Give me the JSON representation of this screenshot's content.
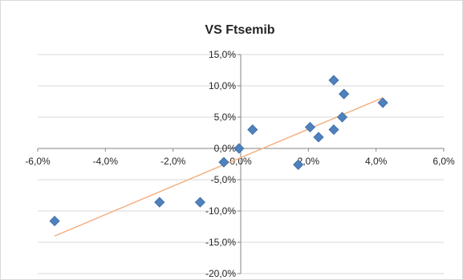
{
  "chart_data": {
    "type": "scatter",
    "title": "VS Ftsemib",
    "xlabel": "",
    "ylabel": "",
    "xlim": [
      -6,
      6
    ],
    "ylim": [
      -20,
      15
    ],
    "x_ticks": [
      -6,
      -4,
      -2,
      0,
      2,
      4,
      6
    ],
    "y_ticks": [
      -20,
      -15,
      -10,
      -5,
      0,
      5,
      10,
      15
    ],
    "x_tick_labels": [
      "-6,0%",
      "-4,0%",
      "-2,0%",
      "0,0%",
      "2,0%",
      "4,0%",
      "6,0%"
    ],
    "y_tick_labels": [
      "-20,0%",
      "-15,0%",
      "-10,0%",
      "-5,0%",
      "0,0%",
      "5,0%",
      "10,0%",
      "15,0%"
    ],
    "grid": true,
    "legend": "none",
    "points": [
      {
        "x": -5.5,
        "y": -11.6
      },
      {
        "x": -2.4,
        "y": -8.6
      },
      {
        "x": -1.2,
        "y": -8.6
      },
      {
        "x": -0.5,
        "y": -2.2
      },
      {
        "x": -0.05,
        "y": 0.0
      },
      {
        "x": 0.35,
        "y": 3.0
      },
      {
        "x": 1.7,
        "y": -2.6
      },
      {
        "x": 2.05,
        "y": 3.4
      },
      {
        "x": 2.3,
        "y": 1.8
      },
      {
        "x": 2.75,
        "y": 3.0
      },
      {
        "x": 2.75,
        "y": 10.9
      },
      {
        "x": 3.0,
        "y": 5.0
      },
      {
        "x": 3.05,
        "y": 8.7
      },
      {
        "x": 4.2,
        "y": 7.3
      }
    ],
    "trendline": {
      "x": [
        -5.5,
        4.2
      ],
      "y": [
        -14.0,
        8.1
      ]
    },
    "colors": {
      "marker": "#4f81bd",
      "marker_edge": "#3a6aa3",
      "trendline": "#f4b183",
      "grid": "#d9d9d9",
      "axis": "#868686",
      "text": "#262626"
    }
  }
}
